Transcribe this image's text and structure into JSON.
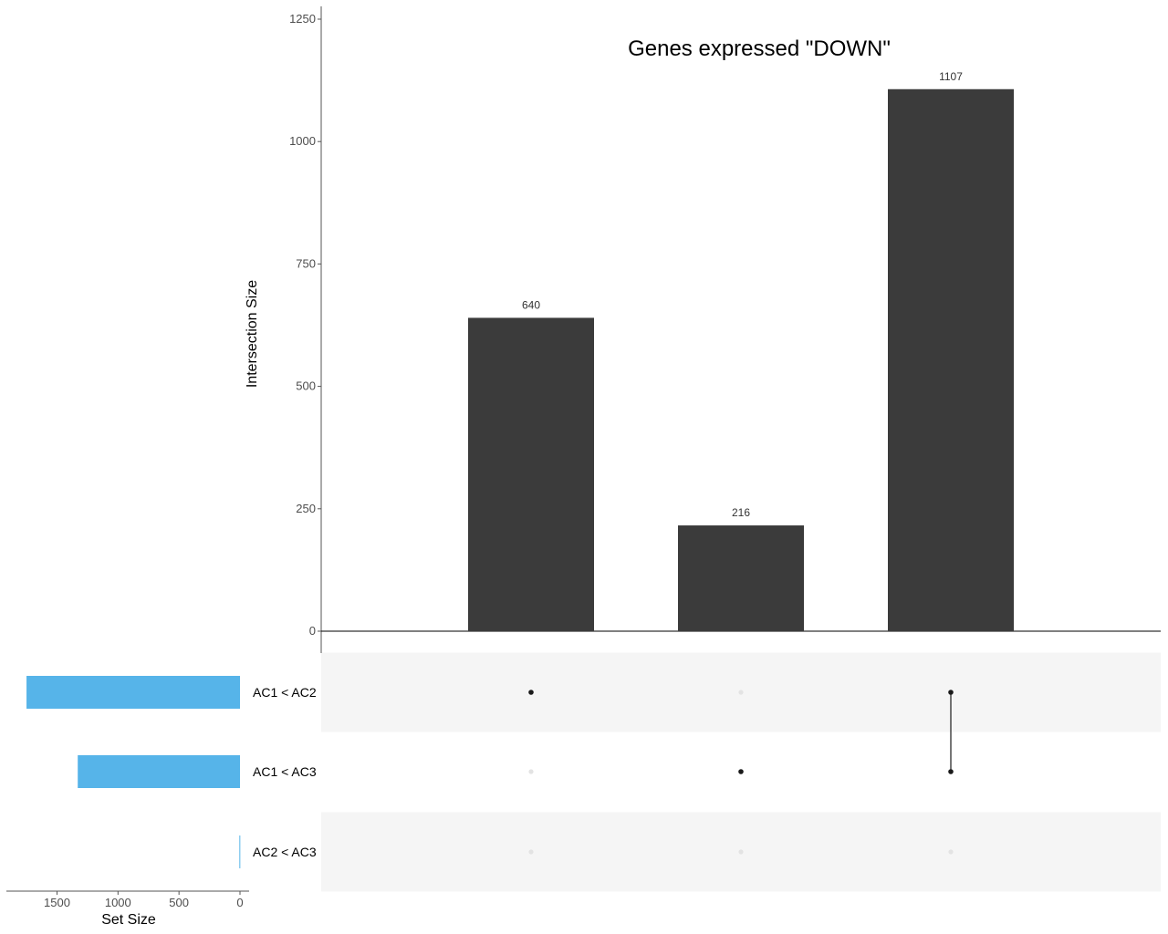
{
  "chart_data": {
    "type": "upset",
    "title": "Genes expressed \"DOWN\"",
    "ylabel": "Intersection Size",
    "set_size_label": "Set Size",
    "ylim": [
      0,
      1250
    ],
    "y_ticks": [
      0,
      250,
      500,
      750,
      1000,
      1250
    ],
    "intersections": [
      {
        "value": 640,
        "label": "640",
        "members": [
          "AC1 < AC2"
        ]
      },
      {
        "value": 216,
        "label": "216",
        "members": [
          "AC1 < AC3"
        ]
      },
      {
        "value": 1107,
        "label": "1107",
        "members": [
          "AC1 < AC2",
          "AC1 < AC3"
        ]
      }
    ],
    "sets": [
      {
        "name": "AC1 < AC2",
        "size": 1750
      },
      {
        "name": "AC1 < AC3",
        "size": 1330
      },
      {
        "name": "AC2 < AC3",
        "size": 5
      }
    ],
    "set_size_ticks": [
      1500,
      1000,
      500,
      0
    ],
    "set_size_max": 1900,
    "colors": {
      "bar": "#3b3b3b",
      "set_bar": "#56b4e9",
      "dot_active": "#1a1a1a",
      "dot_inactive": "#e3e3e3",
      "row_stripe": "#f5f5f5"
    }
  }
}
